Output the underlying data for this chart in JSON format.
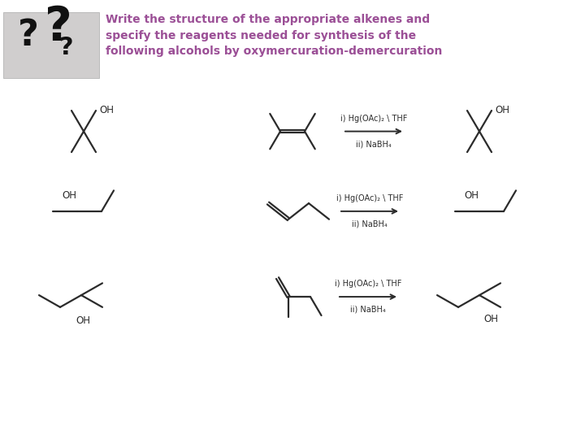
{
  "title_text": "Write the structure of the appropriate alkenes and\nspecify the reagents needed for synthesis of the\nfollowing alcohols by oxymercuration-demercuration",
  "title_color": "#9B4F96",
  "title_fontsize": 10.0,
  "title_bold": true,
  "background_color": "#ffffff",
  "reagent_line1": "i) Hg(OAc)₂ \\ THF",
  "reagent_line2": "ii) NaBH₄",
  "line_color": "#2b2b2b",
  "text_color": "#2b2b2b",
  "bond_lw": 1.6,
  "arrow_lw": 1.4,
  "mol_fontsize": 8.5
}
